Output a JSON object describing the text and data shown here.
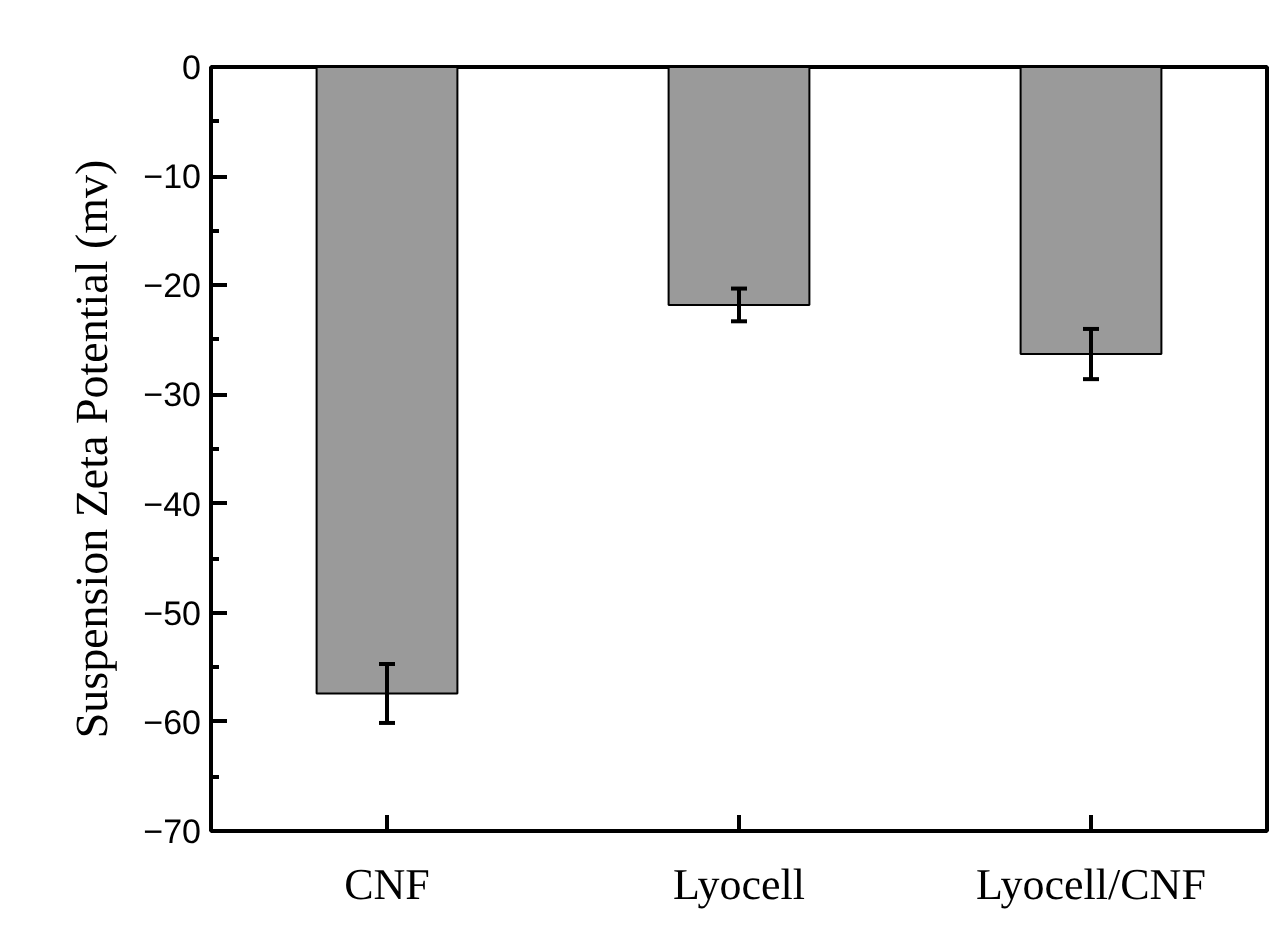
{
  "chart_data": {
    "type": "bar",
    "ylabel": "Suspension Zeta Potential (mv)",
    "categories": [
      "CNF",
      "Lyocell",
      "Lyocell/CNF"
    ],
    "values": [
      -57.4,
      -21.8,
      -26.3
    ],
    "errors": [
      2.7,
      1.5,
      2.3
    ],
    "color": "#9a9a9a",
    "ylim": [
      -70,
      0
    ],
    "yticks": [
      -70,
      -60,
      -50,
      -40,
      -30,
      -20,
      -10,
      0
    ],
    "grid": false
  }
}
